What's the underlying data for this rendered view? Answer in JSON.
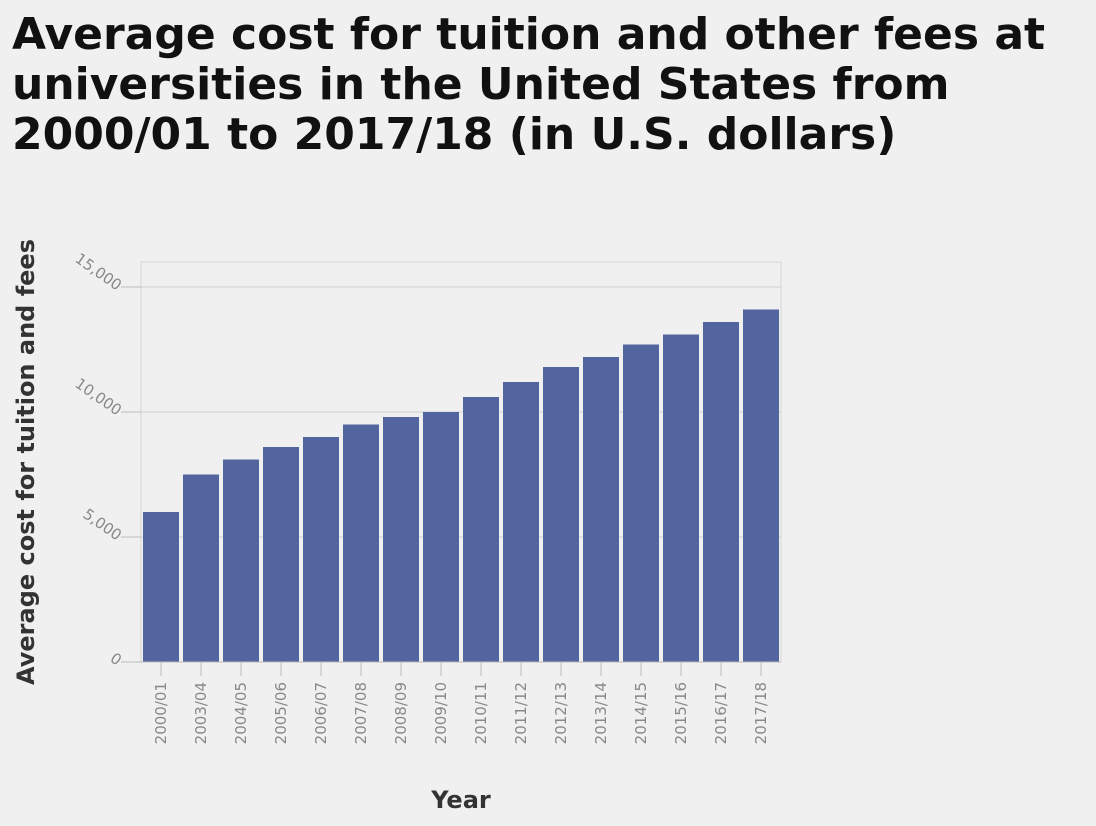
{
  "chart_data": {
    "type": "bar",
    "title": "Average cost for tuition and other fees at universities in the United States from 2000/01 to 2017/18 (in U.S. dollars)",
    "xlabel": "Year",
    "ylabel": "Average cost for tuition and fees",
    "categories": [
      "2000/01",
      "2003/04",
      "2004/05",
      "2005/06",
      "2006/07",
      "2007/08",
      "2008/09",
      "2009/10",
      "2010/11",
      "2011/12",
      "2012/13",
      "2013/14",
      "2014/15",
      "2015/16",
      "2016/17",
      "2017/18"
    ],
    "values": [
      6000,
      7500,
      8100,
      8600,
      9000,
      9500,
      9800,
      10000,
      10600,
      11200,
      11800,
      12200,
      12700,
      13100,
      13600,
      14100
    ],
    "ylim": [
      0,
      15000
    ],
    "yticks": [
      0,
      5000,
      10000,
      15000
    ],
    "ytick_labels": [
      "0",
      "5,000",
      "10,000",
      "15,000"
    ],
    "grid": true,
    "bar_color": "#52659f"
  }
}
